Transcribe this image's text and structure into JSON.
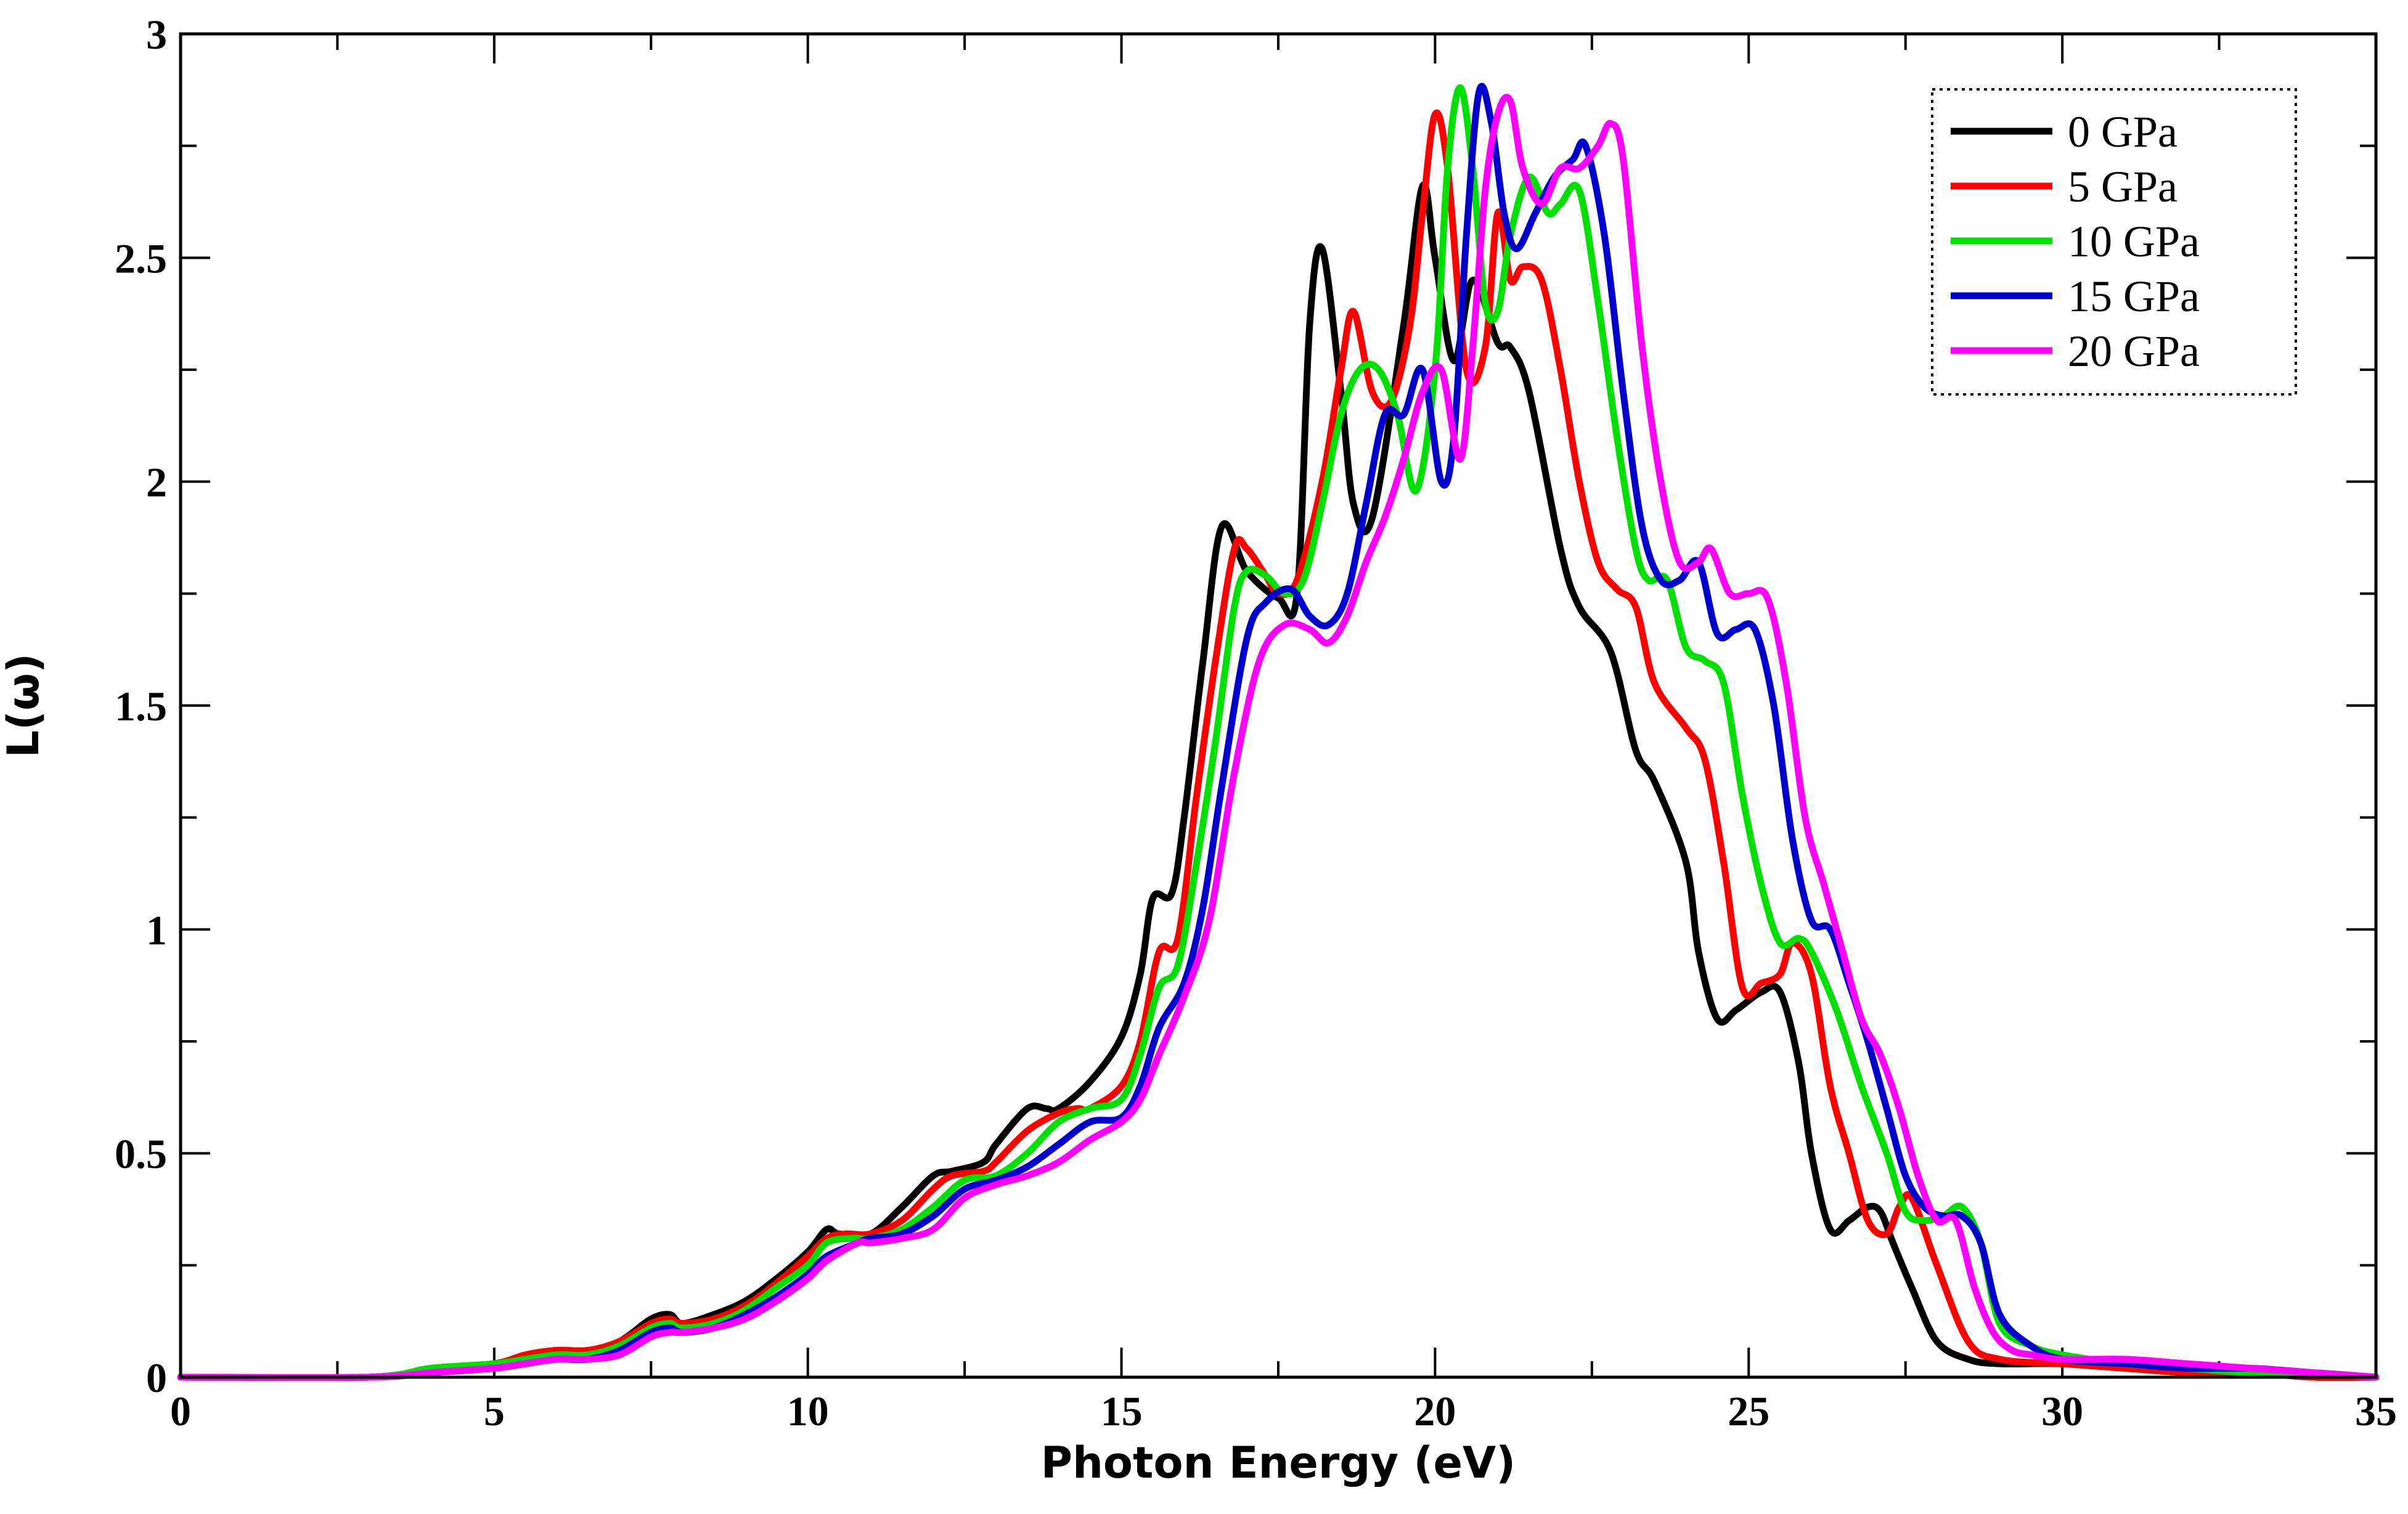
{
  "chart_data": {
    "type": "line",
    "title": "",
    "xlabel": "Photon Energy (eV)",
    "ylabel": "L(ω)",
    "xlim": [
      0,
      35
    ],
    "ylim": [
      0,
      3
    ],
    "xticks": [
      0,
      5,
      10,
      15,
      20,
      25,
      30,
      35
    ],
    "xtick_labels": [
      "0",
      "5",
      "10",
      "15",
      "20",
      "25",
      "30",
      "35"
    ],
    "yticks": [
      0,
      0.5,
      1,
      1.5,
      2,
      2.5,
      3
    ],
    "ytick_labels": [
      "0",
      "0.5",
      "1",
      "1.5",
      "2",
      "2.5",
      "3"
    ],
    "legend_position": "top-right",
    "series": [
      {
        "name": "0 GPa",
        "color": "#000000",
        "x": [
          0,
          3,
          4,
          5,
          5.5,
          6,
          6.5,
          7,
          7.5,
          7.8,
          8,
          8.5,
          9,
          9.5,
          10,
          10.3,
          10.5,
          11,
          11.5,
          12,
          12.3,
          12.8,
          13,
          13.5,
          13.8,
          14,
          14.5,
          15,
          15.3,
          15.5,
          15.8,
          16,
          16.3,
          16.6,
          17,
          17.5,
          17.8,
          18,
          18.2,
          18.5,
          18.7,
          19,
          19.5,
          19.8,
          20,
          20.3,
          20.6,
          21,
          21.2,
          21.5,
          22,
          22.3,
          22.8,
          23.2,
          23.5,
          24,
          24.2,
          24.5,
          24.8,
          25.2,
          25.5,
          25.8,
          26,
          26.3,
          26.6,
          26.9,
          27.1,
          27.3,
          27.6,
          28,
          28.5,
          29,
          30,
          31,
          32,
          33,
          34,
          35
        ],
        "y": [
          0,
          0,
          0.02,
          0.03,
          0.05,
          0.06,
          0.06,
          0.08,
          0.13,
          0.14,
          0.12,
          0.14,
          0.17,
          0.22,
          0.28,
          0.33,
          0.32,
          0.32,
          0.38,
          0.45,
          0.46,
          0.48,
          0.52,
          0.6,
          0.6,
          0.6,
          0.66,
          0.76,
          0.9,
          1.07,
          1.08,
          1.25,
          1.6,
          1.9,
          1.8,
          1.74,
          1.75,
          2.35,
          2.52,
          2.2,
          1.95,
          1.92,
          2.35,
          2.66,
          2.5,
          2.27,
          2.45,
          2.31,
          2.3,
          2.2,
          1.85,
          1.72,
          1.62,
          1.4,
          1.33,
          1.15,
          0.95,
          0.8,
          0.82,
          0.86,
          0.86,
          0.7,
          0.5,
          0.33,
          0.35,
          0.38,
          0.37,
          0.3,
          0.2,
          0.08,
          0.04,
          0.03,
          0.03,
          0.02,
          0.01,
          0.01,
          0,
          0
        ]
      },
      {
        "name": "5 GPa",
        "color": "#ff0000",
        "x": [
          0,
          3,
          4,
          5,
          5.5,
          6,
          6.5,
          7,
          7.5,
          7.8,
          8,
          8.5,
          9,
          9.5,
          10,
          10.3,
          10.6,
          11,
          11.5,
          12,
          12.3,
          12.8,
          13,
          13.5,
          14,
          14.3,
          14.5,
          15,
          15.3,
          15.6,
          15.9,
          16.2,
          16.5,
          16.8,
          17,
          17.3,
          17.5,
          17.8,
          18.2,
          18.5,
          18.7,
          19,
          19.3,
          19.6,
          19.8,
          20,
          20.2,
          20.5,
          20.8,
          21,
          21.2,
          21.4,
          21.7,
          22,
          22.3,
          22.6,
          22.9,
          23.2,
          23.5,
          24,
          24.3,
          24.6,
          24.9,
          25.2,
          25.5,
          25.7,
          26,
          26.3,
          26.6,
          26.9,
          27.2,
          27.4,
          27.6,
          28,
          28.5,
          29,
          30,
          31,
          32,
          33,
          34,
          35
        ],
        "y": [
          0,
          0,
          0.02,
          0.03,
          0.05,
          0.06,
          0.06,
          0.08,
          0.12,
          0.13,
          0.12,
          0.13,
          0.16,
          0.21,
          0.27,
          0.31,
          0.32,
          0.32,
          0.35,
          0.42,
          0.45,
          0.46,
          0.48,
          0.55,
          0.59,
          0.6,
          0.6,
          0.65,
          0.75,
          0.95,
          0.98,
          1.3,
          1.6,
          1.85,
          1.85,
          1.79,
          1.75,
          1.78,
          2.0,
          2.25,
          2.38,
          2.2,
          2.18,
          2.35,
          2.6,
          2.82,
          2.7,
          2.25,
          2.3,
          2.6,
          2.45,
          2.48,
          2.45,
          2.25,
          2.0,
          1.82,
          1.76,
          1.72,
          1.55,
          1.45,
          1.38,
          1.15,
          0.87,
          0.88,
          0.9,
          0.97,
          0.9,
          0.65,
          0.5,
          0.35,
          0.32,
          0.38,
          0.4,
          0.25,
          0.08,
          0.04,
          0.03,
          0.02,
          0.01,
          0.01,
          0,
          0
        ]
      },
      {
        "name": "10 GPa",
        "color": "#00e000",
        "x": [
          0,
          3,
          4,
          5,
          5.5,
          6,
          6.5,
          7,
          7.5,
          7.8,
          8,
          8.5,
          9,
          9.5,
          10,
          10.3,
          10.7,
          11,
          11.5,
          12,
          12.5,
          13,
          13.5,
          14,
          14.5,
          15,
          15.3,
          15.6,
          15.9,
          16.2,
          16.5,
          16.8,
          17,
          17.3,
          17.6,
          17.9,
          18.2,
          18.5,
          18.8,
          19.1,
          19.4,
          19.7,
          20,
          20.2,
          20.4,
          20.6,
          20.8,
          21,
          21.2,
          21.5,
          21.8,
          22,
          22.3,
          22.6,
          22.9,
          23.2,
          23.4,
          23.7,
          24,
          24.3,
          24.6,
          24.9,
          25.2,
          25.5,
          25.8,
          26,
          26.4,
          26.8,
          27.2,
          27.5,
          27.8,
          28.1,
          28.4,
          28.7,
          29,
          29.5,
          30,
          31,
          32,
          33,
          34,
          35
        ],
        "y": [
          0,
          0,
          0.02,
          0.03,
          0.04,
          0.05,
          0.05,
          0.07,
          0.11,
          0.12,
          0.11,
          0.12,
          0.15,
          0.2,
          0.25,
          0.3,
          0.31,
          0.31,
          0.33,
          0.38,
          0.44,
          0.45,
          0.5,
          0.57,
          0.6,
          0.62,
          0.72,
          0.87,
          0.92,
          1.15,
          1.42,
          1.72,
          1.8,
          1.79,
          1.75,
          1.78,
          1.95,
          2.15,
          2.25,
          2.25,
          2.15,
          1.98,
          2.25,
          2.7,
          2.88,
          2.7,
          2.4,
          2.38,
          2.55,
          2.68,
          2.6,
          2.62,
          2.65,
          2.4,
          2.1,
          1.85,
          1.78,
          1.78,
          1.63,
          1.6,
          1.55,
          1.3,
          1.1,
          0.97,
          0.98,
          0.95,
          0.82,
          0.65,
          0.5,
          0.37,
          0.35,
          0.36,
          0.38,
          0.3,
          0.12,
          0.07,
          0.05,
          0.03,
          0.02,
          0.01,
          0.01,
          0
        ]
      },
      {
        "name": "15 GPa",
        "color": "#0000cc",
        "x": [
          0,
          3,
          4,
          5,
          5.5,
          6,
          6.5,
          7,
          7.5,
          7.8,
          8,
          8.5,
          9,
          9.5,
          10,
          10.3,
          10.8,
          11,
          11.5,
          12,
          12.5,
          13,
          13.5,
          14,
          14.5,
          15,
          15.3,
          15.6,
          16,
          16.3,
          16.6,
          17,
          17.3,
          17.7,
          18,
          18.3,
          18.6,
          18.9,
          19.2,
          19.5,
          19.8,
          20.1,
          20.3,
          20.5,
          20.7,
          20.9,
          21.1,
          21.3,
          21.6,
          21.9,
          22.2,
          22.4,
          22.7,
          23,
          23.3,
          23.6,
          23.9,
          24.2,
          24.5,
          24.8,
          25.1,
          25.4,
          25.7,
          26,
          26.3,
          26.6,
          26.9,
          27.2,
          27.5,
          27.8,
          28.1,
          28.4,
          28.7,
          29,
          29.5,
          30,
          31,
          32,
          33,
          34,
          35
        ],
        "y": [
          0,
          0,
          0.01,
          0.02,
          0.03,
          0.04,
          0.04,
          0.06,
          0.1,
          0.11,
          0.1,
          0.11,
          0.14,
          0.18,
          0.23,
          0.27,
          0.3,
          0.31,
          0.32,
          0.36,
          0.42,
          0.44,
          0.47,
          0.52,
          0.57,
          0.58,
          0.65,
          0.78,
          0.88,
          1.05,
          1.32,
          1.65,
          1.73,
          1.76,
          1.7,
          1.68,
          1.75,
          1.95,
          2.15,
          2.15,
          2.25,
          2.0,
          2.1,
          2.55,
          2.87,
          2.8,
          2.6,
          2.52,
          2.6,
          2.68,
          2.72,
          2.75,
          2.55,
          2.2,
          1.9,
          1.78,
          1.78,
          1.82,
          1.66,
          1.67,
          1.67,
          1.5,
          1.2,
          1.02,
          1.0,
          0.88,
          0.75,
          0.6,
          0.45,
          0.38,
          0.36,
          0.36,
          0.3,
          0.14,
          0.07,
          0.04,
          0.03,
          0.02,
          0.02,
          0.01,
          0
        ]
      },
      {
        "name": "20 GPa",
        "color": "#ff00ff",
        "x": [
          0,
          3,
          4,
          5,
          5.5,
          6,
          6.5,
          7,
          7.5,
          7.8,
          8,
          8.5,
          9,
          9.5,
          10,
          10.3,
          10.8,
          11,
          11.5,
          12,
          12.5,
          13,
          13.5,
          14,
          14.5,
          15,
          15.3,
          15.6,
          16,
          16.4,
          16.8,
          17.2,
          17.6,
          18,
          18.3,
          18.6,
          18.9,
          19.2,
          19.5,
          19.8,
          20.1,
          20.4,
          20.6,
          20.8,
          21,
          21.2,
          21.4,
          21.7,
          22,
          22.3,
          22.6,
          22.8,
          23,
          23.3,
          23.6,
          23.9,
          24.2,
          24.4,
          24.7,
          25,
          25.3,
          25.6,
          25.9,
          26.2,
          26.5,
          26.8,
          27.1,
          27.4,
          27.7,
          28,
          28.3,
          28.6,
          28.9,
          29.2,
          29.5,
          30,
          31,
          32,
          33,
          34,
          35
        ],
        "y": [
          0,
          0,
          0.01,
          0.02,
          0.03,
          0.04,
          0.04,
          0.05,
          0.09,
          0.1,
          0.1,
          0.11,
          0.13,
          0.17,
          0.22,
          0.26,
          0.3,
          0.3,
          0.31,
          0.33,
          0.4,
          0.43,
          0.45,
          0.48,
          0.53,
          0.57,
          0.62,
          0.72,
          0.85,
          1.02,
          1.35,
          1.6,
          1.68,
          1.67,
          1.64,
          1.7,
          1.82,
          1.92,
          2.05,
          2.2,
          2.25,
          2.05,
          2.3,
          2.65,
          2.82,
          2.85,
          2.7,
          2.62,
          2.7,
          2.7,
          2.75,
          2.8,
          2.72,
          2.3,
          2.0,
          1.82,
          1.82,
          1.85,
          1.75,
          1.75,
          1.74,
          1.55,
          1.25,
          1.1,
          0.95,
          0.8,
          0.72,
          0.6,
          0.45,
          0.35,
          0.35,
          0.2,
          0.1,
          0.06,
          0.05,
          0.04,
          0.04,
          0.03,
          0.02,
          0.01,
          0
        ]
      }
    ]
  }
}
